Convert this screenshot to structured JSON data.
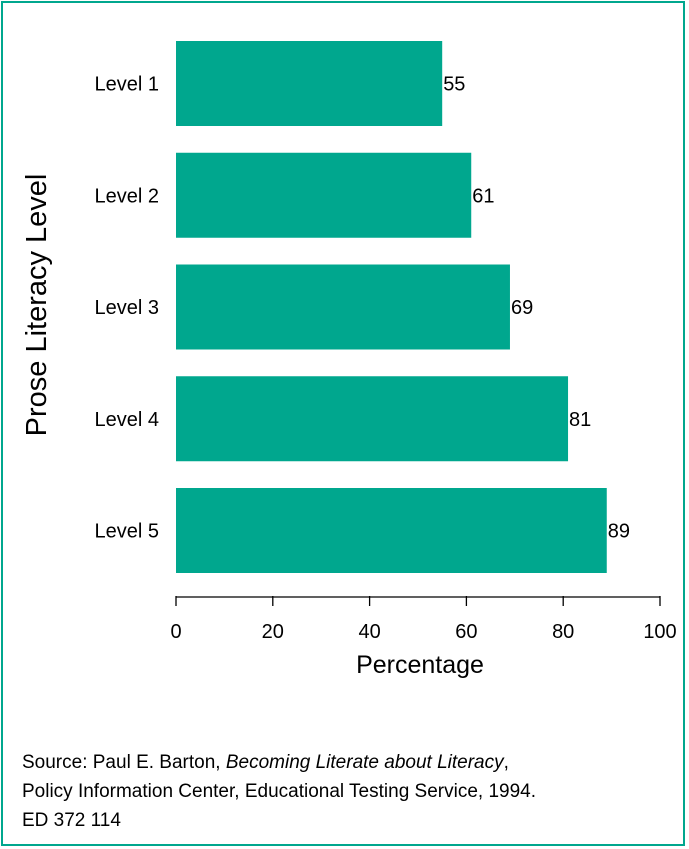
{
  "colors": {
    "bar": "#00a78e",
    "frame": "#00a78e",
    "axis": "#000000"
  },
  "chart_data": {
    "type": "bar",
    "orientation": "horizontal",
    "categories": [
      "Level 1",
      "Level 2",
      "Level 3",
      "Level 4",
      "Level 5"
    ],
    "values": [
      55,
      61,
      69,
      81,
      89
    ],
    "value_labels": [
      "55",
      "61",
      "69",
      "81",
      "89"
    ],
    "ylabel": "Prose Literacy Level",
    "xlabel": "Percentage",
    "xlim": [
      0,
      100
    ],
    "x_ticks": [
      0,
      20,
      40,
      60,
      80,
      100
    ],
    "x_tick_labels": [
      "0",
      "20",
      "40",
      "60",
      "80",
      "100"
    ],
    "grid": false,
    "legend": "none"
  },
  "source": {
    "prefix": "Source: Paul E. Barton, ",
    "title": "Becoming Literate about Literacy",
    "after_title": ",",
    "line2": "Policy Information Center, Educational Testing Service, 1994.",
    "line3": "ED 372 114"
  }
}
